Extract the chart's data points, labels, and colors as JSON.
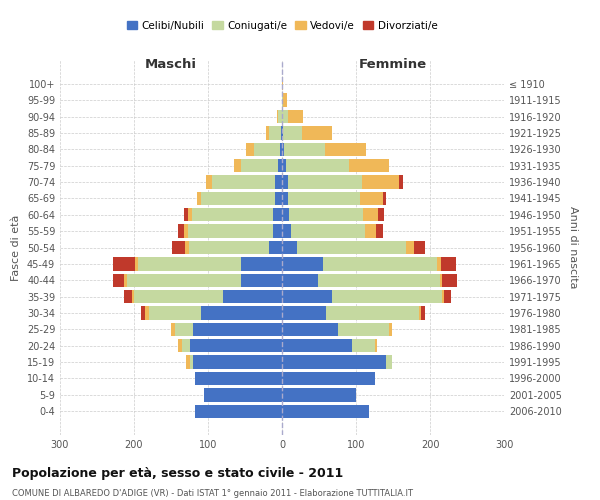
{
  "age_groups": [
    "0-4",
    "5-9",
    "10-14",
    "15-19",
    "20-24",
    "25-29",
    "30-34",
    "35-39",
    "40-44",
    "45-49",
    "50-54",
    "55-59",
    "60-64",
    "65-69",
    "70-74",
    "75-79",
    "80-84",
    "85-89",
    "90-94",
    "95-99",
    "100+"
  ],
  "birth_years": [
    "2006-2010",
    "2001-2005",
    "1996-2000",
    "1991-1995",
    "1986-1990",
    "1981-1985",
    "1976-1980",
    "1971-1975",
    "1966-1970",
    "1961-1965",
    "1956-1960",
    "1951-1955",
    "1946-1950",
    "1941-1945",
    "1936-1940",
    "1931-1935",
    "1926-1930",
    "1921-1925",
    "1916-1920",
    "1911-1915",
    "≤ 1910"
  ],
  "males": {
    "celibe": [
      118,
      105,
      118,
      120,
      125,
      120,
      110,
      80,
      55,
      55,
      18,
      12,
      12,
      10,
      10,
      5,
      3,
      2,
      0,
      0,
      0
    ],
    "coniugato": [
      0,
      0,
      0,
      5,
      10,
      25,
      70,
      120,
      155,
      140,
      108,
      115,
      110,
      100,
      85,
      50,
      35,
      15,
      5,
      0,
      0
    ],
    "vedovo": [
      0,
      0,
      0,
      5,
      5,
      5,
      5,
      3,
      3,
      3,
      5,
      5,
      5,
      5,
      8,
      10,
      10,
      5,
      2,
      0,
      0
    ],
    "divorziato": [
      0,
      0,
      0,
      0,
      0,
      0,
      5,
      10,
      15,
      30,
      18,
      8,
      5,
      0,
      0,
      0,
      0,
      0,
      0,
      0,
      0
    ]
  },
  "females": {
    "nubile": [
      118,
      100,
      125,
      140,
      95,
      75,
      60,
      68,
      48,
      55,
      20,
      12,
      10,
      8,
      8,
      5,
      3,
      2,
      0,
      0,
      0
    ],
    "coniugata": [
      0,
      0,
      0,
      8,
      30,
      70,
      125,
      148,
      165,
      155,
      148,
      100,
      100,
      98,
      100,
      85,
      55,
      25,
      8,
      2,
      0
    ],
    "vedova": [
      0,
      0,
      0,
      0,
      3,
      3,
      3,
      3,
      3,
      5,
      10,
      15,
      20,
      30,
      50,
      55,
      55,
      40,
      20,
      5,
      2
    ],
    "divorziata": [
      0,
      0,
      0,
      0,
      0,
      0,
      5,
      10,
      20,
      20,
      15,
      10,
      8,
      5,
      5,
      0,
      0,
      0,
      0,
      0,
      0
    ]
  },
  "colors": {
    "celibe": "#4472C4",
    "coniugato": "#c5d9a0",
    "vedovo": "#f0b858",
    "divorziato": "#c0392b"
  },
  "xlim": 300,
  "title": "Popolazione per età, sesso e stato civile - 2011",
  "subtitle": "COMUNE DI ALBAREDO D'ADIGE (VR) - Dati ISTAT 1° gennaio 2011 - Elaborazione TUTTITALIA.IT",
  "xlabel_left": "Maschi",
  "xlabel_right": "Femmine",
  "ylabel_left": "Fasce di età",
  "ylabel_right": "Anni di nascita",
  "legend_labels": [
    "Celibi/Nubili",
    "Coniugati/e",
    "Vedovi/e",
    "Divorziati/e"
  ],
  "background_color": "#ffffff",
  "grid_color": "#cccccc"
}
